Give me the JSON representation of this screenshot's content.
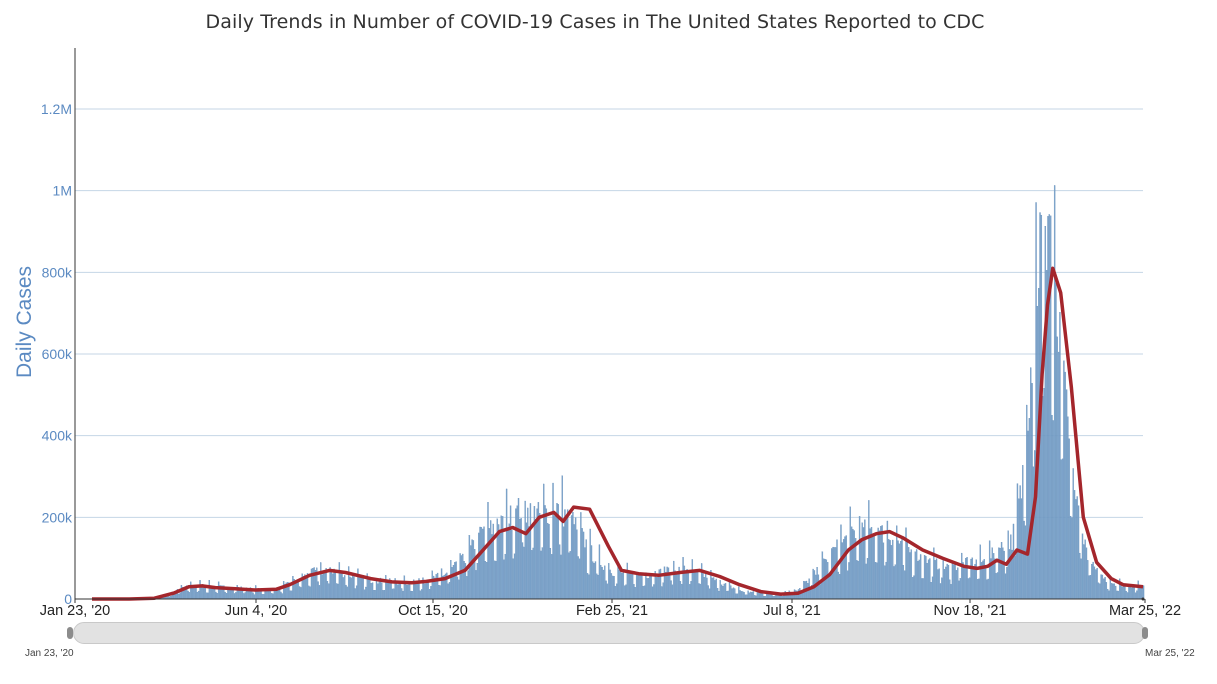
{
  "chart_data": {
    "type": "bar",
    "title": "Daily Trends in Number of COVID-19 Cases in The United States Reported to CDC",
    "ylabel": "Daily Cases",
    "xlabel": "",
    "ylim": [
      0,
      1320000
    ],
    "y_ticks": [
      0,
      200000,
      400000,
      600000,
      800000,
      1000000,
      1200000
    ],
    "y_tick_labels": [
      "0",
      "200k",
      "400k",
      "600k",
      "800k",
      "1M",
      "1.2M"
    ],
    "x_tick_labels": [
      "Jan 23, '20",
      "Jun 4, '20",
      "Oct 15, '20",
      "Feb 25, '21",
      "Jul 8, '21",
      "Nov 18, '21",
      "Mar 25, '22"
    ],
    "x_range": [
      "2020-01-23",
      "2022-03-25"
    ],
    "grid": true,
    "series": [
      {
        "type": "bar",
        "color": "#7fa6cc",
        "x": [
          "2020-01-23",
          "2020-02-06",
          "2020-02-20",
          "2020-03-05",
          "2020-03-19",
          "2020-04-02",
          "2020-04-16",
          "2020-04-30",
          "2020-05-14",
          "2020-05-28",
          "2020-06-11",
          "2020-06-25",
          "2020-07-09",
          "2020-07-23",
          "2020-08-06",
          "2020-08-20",
          "2020-09-03",
          "2020-09-17",
          "2020-10-01",
          "2020-10-15",
          "2020-10-29",
          "2020-11-12",
          "2020-11-26",
          "2020-12-10",
          "2020-12-24",
          "2021-01-07",
          "2021-01-21",
          "2021-02-04",
          "2021-02-18",
          "2021-03-04",
          "2021-03-18",
          "2021-04-01",
          "2021-04-15",
          "2021-04-29",
          "2021-05-13",
          "2021-05-27",
          "2021-06-10",
          "2021-06-24",
          "2021-07-08",
          "2021-07-22",
          "2021-08-05",
          "2021-08-19",
          "2021-09-02",
          "2021-09-16",
          "2021-09-30",
          "2021-10-14",
          "2021-10-28",
          "2021-11-11",
          "2021-11-25",
          "2021-12-09",
          "2021-12-16",
          "2021-12-23",
          "2021-12-30",
          "2022-01-03",
          "2022-01-06",
          "2022-01-10",
          "2022-01-13",
          "2022-01-17",
          "2022-01-20",
          "2022-01-24",
          "2022-01-31",
          "2022-02-07",
          "2022-02-14",
          "2022-02-21",
          "2022-02-28",
          "2022-03-07",
          "2022-03-14",
          "2022-03-25"
        ],
        "values": [
          0,
          0,
          0,
          500,
          8000,
          30000,
          32000,
          28000,
          26000,
          22000,
          24000,
          45000,
          66000,
          68000,
          55000,
          45000,
          42000,
          38000,
          45000,
          60000,
          95000,
          160000,
          175000,
          215000,
          200000,
          220000,
          175000,
          100000,
          65000,
          58000,
          58000,
          68000,
          72000,
          55000,
          35000,
          18000,
          14000,
          13000,
          22000,
          65000,
          120000,
          160000,
          165000,
          150000,
          115000,
          90000,
          75000,
          85000,
          90000,
          125000,
          140000,
          260000,
          550000,
          720000,
          860000,
          800000,
          950000,
          700000,
          620000,
          500000,
          280000,
          150000,
          80000,
          55000,
          40000,
          35000,
          32000,
          30000
        ]
      },
      {
        "type": "line",
        "name": "",
        "color": "#a4262c",
        "x": [
          "2020-01-23",
          "2020-02-20",
          "2020-03-10",
          "2020-03-25",
          "2020-04-05",
          "2020-04-15",
          "2020-04-25",
          "2020-05-10",
          "2020-05-25",
          "2020-06-10",
          "2020-06-20",
          "2020-07-05",
          "2020-07-20",
          "2020-08-01",
          "2020-08-20",
          "2020-09-05",
          "2020-09-20",
          "2020-10-01",
          "2020-10-15",
          "2020-10-30",
          "2020-11-10",
          "2020-11-25",
          "2020-12-05",
          "2020-12-15",
          "2020-12-25",
          "2021-01-05",
          "2021-01-12",
          "2021-01-20",
          "2021-02-01",
          "2021-02-15",
          "2021-02-25",
          "2021-03-10",
          "2021-03-25",
          "2021-04-10",
          "2021-04-25",
          "2021-05-10",
          "2021-05-25",
          "2021-06-10",
          "2021-06-25",
          "2021-07-08",
          "2021-07-20",
          "2021-08-01",
          "2021-08-15",
          "2021-08-25",
          "2021-09-05",
          "2021-09-15",
          "2021-09-25",
          "2021-10-10",
          "2021-10-25",
          "2021-11-10",
          "2021-11-20",
          "2021-11-28",
          "2021-12-05",
          "2021-12-12",
          "2021-12-20",
          "2021-12-28",
          "2022-01-03",
          "2022-01-08",
          "2022-01-12",
          "2022-01-16",
          "2022-01-22",
          "2022-01-30",
          "2022-02-08",
          "2022-02-18",
          "2022-03-01",
          "2022-03-10",
          "2022-03-25"
        ],
        "values": [
          0,
          0,
          2000,
          15000,
          30000,
          32000,
          28000,
          25000,
          22000,
          24000,
          35000,
          58000,
          70000,
          65000,
          50000,
          42000,
          40000,
          43000,
          50000,
          70000,
          110000,
          165000,
          175000,
          160000,
          200000,
          212000,
          190000,
          225000,
          220000,
          130000,
          70000,
          62000,
          58000,
          65000,
          70000,
          55000,
          35000,
          18000,
          12000,
          14000,
          30000,
          60000,
          120000,
          145000,
          160000,
          165000,
          150000,
          120000,
          100000,
          80000,
          75000,
          80000,
          95000,
          85000,
          120000,
          110000,
          250000,
          550000,
          720000,
          810000,
          750000,
          520000,
          200000,
          90000,
          50000,
          35000,
          30000
        ]
      }
    ]
  },
  "navigator": {
    "start_label": "Jan 23, '20",
    "end_label": "Mar 25, '22"
  }
}
